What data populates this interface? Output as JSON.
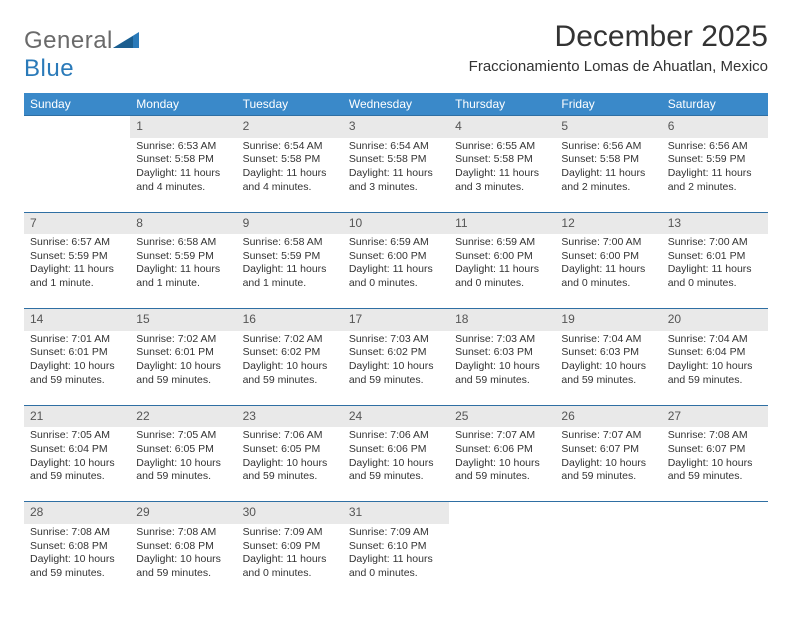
{
  "logo": {
    "text1": "General",
    "text2": "Blue"
  },
  "title": "December 2025",
  "subtitle": "Fraccionamiento Lomas de Ahuatlan, Mexico",
  "colors": {
    "header_bg": "#3a89c9",
    "row_divider": "#2f6fa3",
    "daynum_bg": "#e9e9e9",
    "logo_gray": "#6a6a6a",
    "logo_blue": "#2a7ab9"
  },
  "weekdays": [
    "Sunday",
    "Monday",
    "Tuesday",
    "Wednesday",
    "Thursday",
    "Friday",
    "Saturday"
  ],
  "weeks": [
    {
      "nums": [
        "",
        "1",
        "2",
        "3",
        "4",
        "5",
        "6"
      ],
      "cells": [
        null,
        {
          "sr": "Sunrise: 6:53 AM",
          "ss": "Sunset: 5:58 PM",
          "dl": "Daylight: 11 hours and 4 minutes."
        },
        {
          "sr": "Sunrise: 6:54 AM",
          "ss": "Sunset: 5:58 PM",
          "dl": "Daylight: 11 hours and 4 minutes."
        },
        {
          "sr": "Sunrise: 6:54 AM",
          "ss": "Sunset: 5:58 PM",
          "dl": "Daylight: 11 hours and 3 minutes."
        },
        {
          "sr": "Sunrise: 6:55 AM",
          "ss": "Sunset: 5:58 PM",
          "dl": "Daylight: 11 hours and 3 minutes."
        },
        {
          "sr": "Sunrise: 6:56 AM",
          "ss": "Sunset: 5:58 PM",
          "dl": "Daylight: 11 hours and 2 minutes."
        },
        {
          "sr": "Sunrise: 6:56 AM",
          "ss": "Sunset: 5:59 PM",
          "dl": "Daylight: 11 hours and 2 minutes."
        }
      ]
    },
    {
      "nums": [
        "7",
        "8",
        "9",
        "10",
        "11",
        "12",
        "13"
      ],
      "cells": [
        {
          "sr": "Sunrise: 6:57 AM",
          "ss": "Sunset: 5:59 PM",
          "dl": "Daylight: 11 hours and 1 minute."
        },
        {
          "sr": "Sunrise: 6:58 AM",
          "ss": "Sunset: 5:59 PM",
          "dl": "Daylight: 11 hours and 1 minute."
        },
        {
          "sr": "Sunrise: 6:58 AM",
          "ss": "Sunset: 5:59 PM",
          "dl": "Daylight: 11 hours and 1 minute."
        },
        {
          "sr": "Sunrise: 6:59 AM",
          "ss": "Sunset: 6:00 PM",
          "dl": "Daylight: 11 hours and 0 minutes."
        },
        {
          "sr": "Sunrise: 6:59 AM",
          "ss": "Sunset: 6:00 PM",
          "dl": "Daylight: 11 hours and 0 minutes."
        },
        {
          "sr": "Sunrise: 7:00 AM",
          "ss": "Sunset: 6:00 PM",
          "dl": "Daylight: 11 hours and 0 minutes."
        },
        {
          "sr": "Sunrise: 7:00 AM",
          "ss": "Sunset: 6:01 PM",
          "dl": "Daylight: 11 hours and 0 minutes."
        }
      ]
    },
    {
      "nums": [
        "14",
        "15",
        "16",
        "17",
        "18",
        "19",
        "20"
      ],
      "cells": [
        {
          "sr": "Sunrise: 7:01 AM",
          "ss": "Sunset: 6:01 PM",
          "dl": "Daylight: 10 hours and 59 minutes."
        },
        {
          "sr": "Sunrise: 7:02 AM",
          "ss": "Sunset: 6:01 PM",
          "dl": "Daylight: 10 hours and 59 minutes."
        },
        {
          "sr": "Sunrise: 7:02 AM",
          "ss": "Sunset: 6:02 PM",
          "dl": "Daylight: 10 hours and 59 minutes."
        },
        {
          "sr": "Sunrise: 7:03 AM",
          "ss": "Sunset: 6:02 PM",
          "dl": "Daylight: 10 hours and 59 minutes."
        },
        {
          "sr": "Sunrise: 7:03 AM",
          "ss": "Sunset: 6:03 PM",
          "dl": "Daylight: 10 hours and 59 minutes."
        },
        {
          "sr": "Sunrise: 7:04 AM",
          "ss": "Sunset: 6:03 PM",
          "dl": "Daylight: 10 hours and 59 minutes."
        },
        {
          "sr": "Sunrise: 7:04 AM",
          "ss": "Sunset: 6:04 PM",
          "dl": "Daylight: 10 hours and 59 minutes."
        }
      ]
    },
    {
      "nums": [
        "21",
        "22",
        "23",
        "24",
        "25",
        "26",
        "27"
      ],
      "cells": [
        {
          "sr": "Sunrise: 7:05 AM",
          "ss": "Sunset: 6:04 PM",
          "dl": "Daylight: 10 hours and 59 minutes."
        },
        {
          "sr": "Sunrise: 7:05 AM",
          "ss": "Sunset: 6:05 PM",
          "dl": "Daylight: 10 hours and 59 minutes."
        },
        {
          "sr": "Sunrise: 7:06 AM",
          "ss": "Sunset: 6:05 PM",
          "dl": "Daylight: 10 hours and 59 minutes."
        },
        {
          "sr": "Sunrise: 7:06 AM",
          "ss": "Sunset: 6:06 PM",
          "dl": "Daylight: 10 hours and 59 minutes."
        },
        {
          "sr": "Sunrise: 7:07 AM",
          "ss": "Sunset: 6:06 PM",
          "dl": "Daylight: 10 hours and 59 minutes."
        },
        {
          "sr": "Sunrise: 7:07 AM",
          "ss": "Sunset: 6:07 PM",
          "dl": "Daylight: 10 hours and 59 minutes."
        },
        {
          "sr": "Sunrise: 7:08 AM",
          "ss": "Sunset: 6:07 PM",
          "dl": "Daylight: 10 hours and 59 minutes."
        }
      ]
    },
    {
      "nums": [
        "28",
        "29",
        "30",
        "31",
        "",
        "",
        ""
      ],
      "cells": [
        {
          "sr": "Sunrise: 7:08 AM",
          "ss": "Sunset: 6:08 PM",
          "dl": "Daylight: 10 hours and 59 minutes."
        },
        {
          "sr": "Sunrise: 7:08 AM",
          "ss": "Sunset: 6:08 PM",
          "dl": "Daylight: 10 hours and 59 minutes."
        },
        {
          "sr": "Sunrise: 7:09 AM",
          "ss": "Sunset: 6:09 PM",
          "dl": "Daylight: 11 hours and 0 minutes."
        },
        {
          "sr": "Sunrise: 7:09 AM",
          "ss": "Sunset: 6:10 PM",
          "dl": "Daylight: 11 hours and 0 minutes."
        },
        null,
        null,
        null
      ]
    }
  ]
}
